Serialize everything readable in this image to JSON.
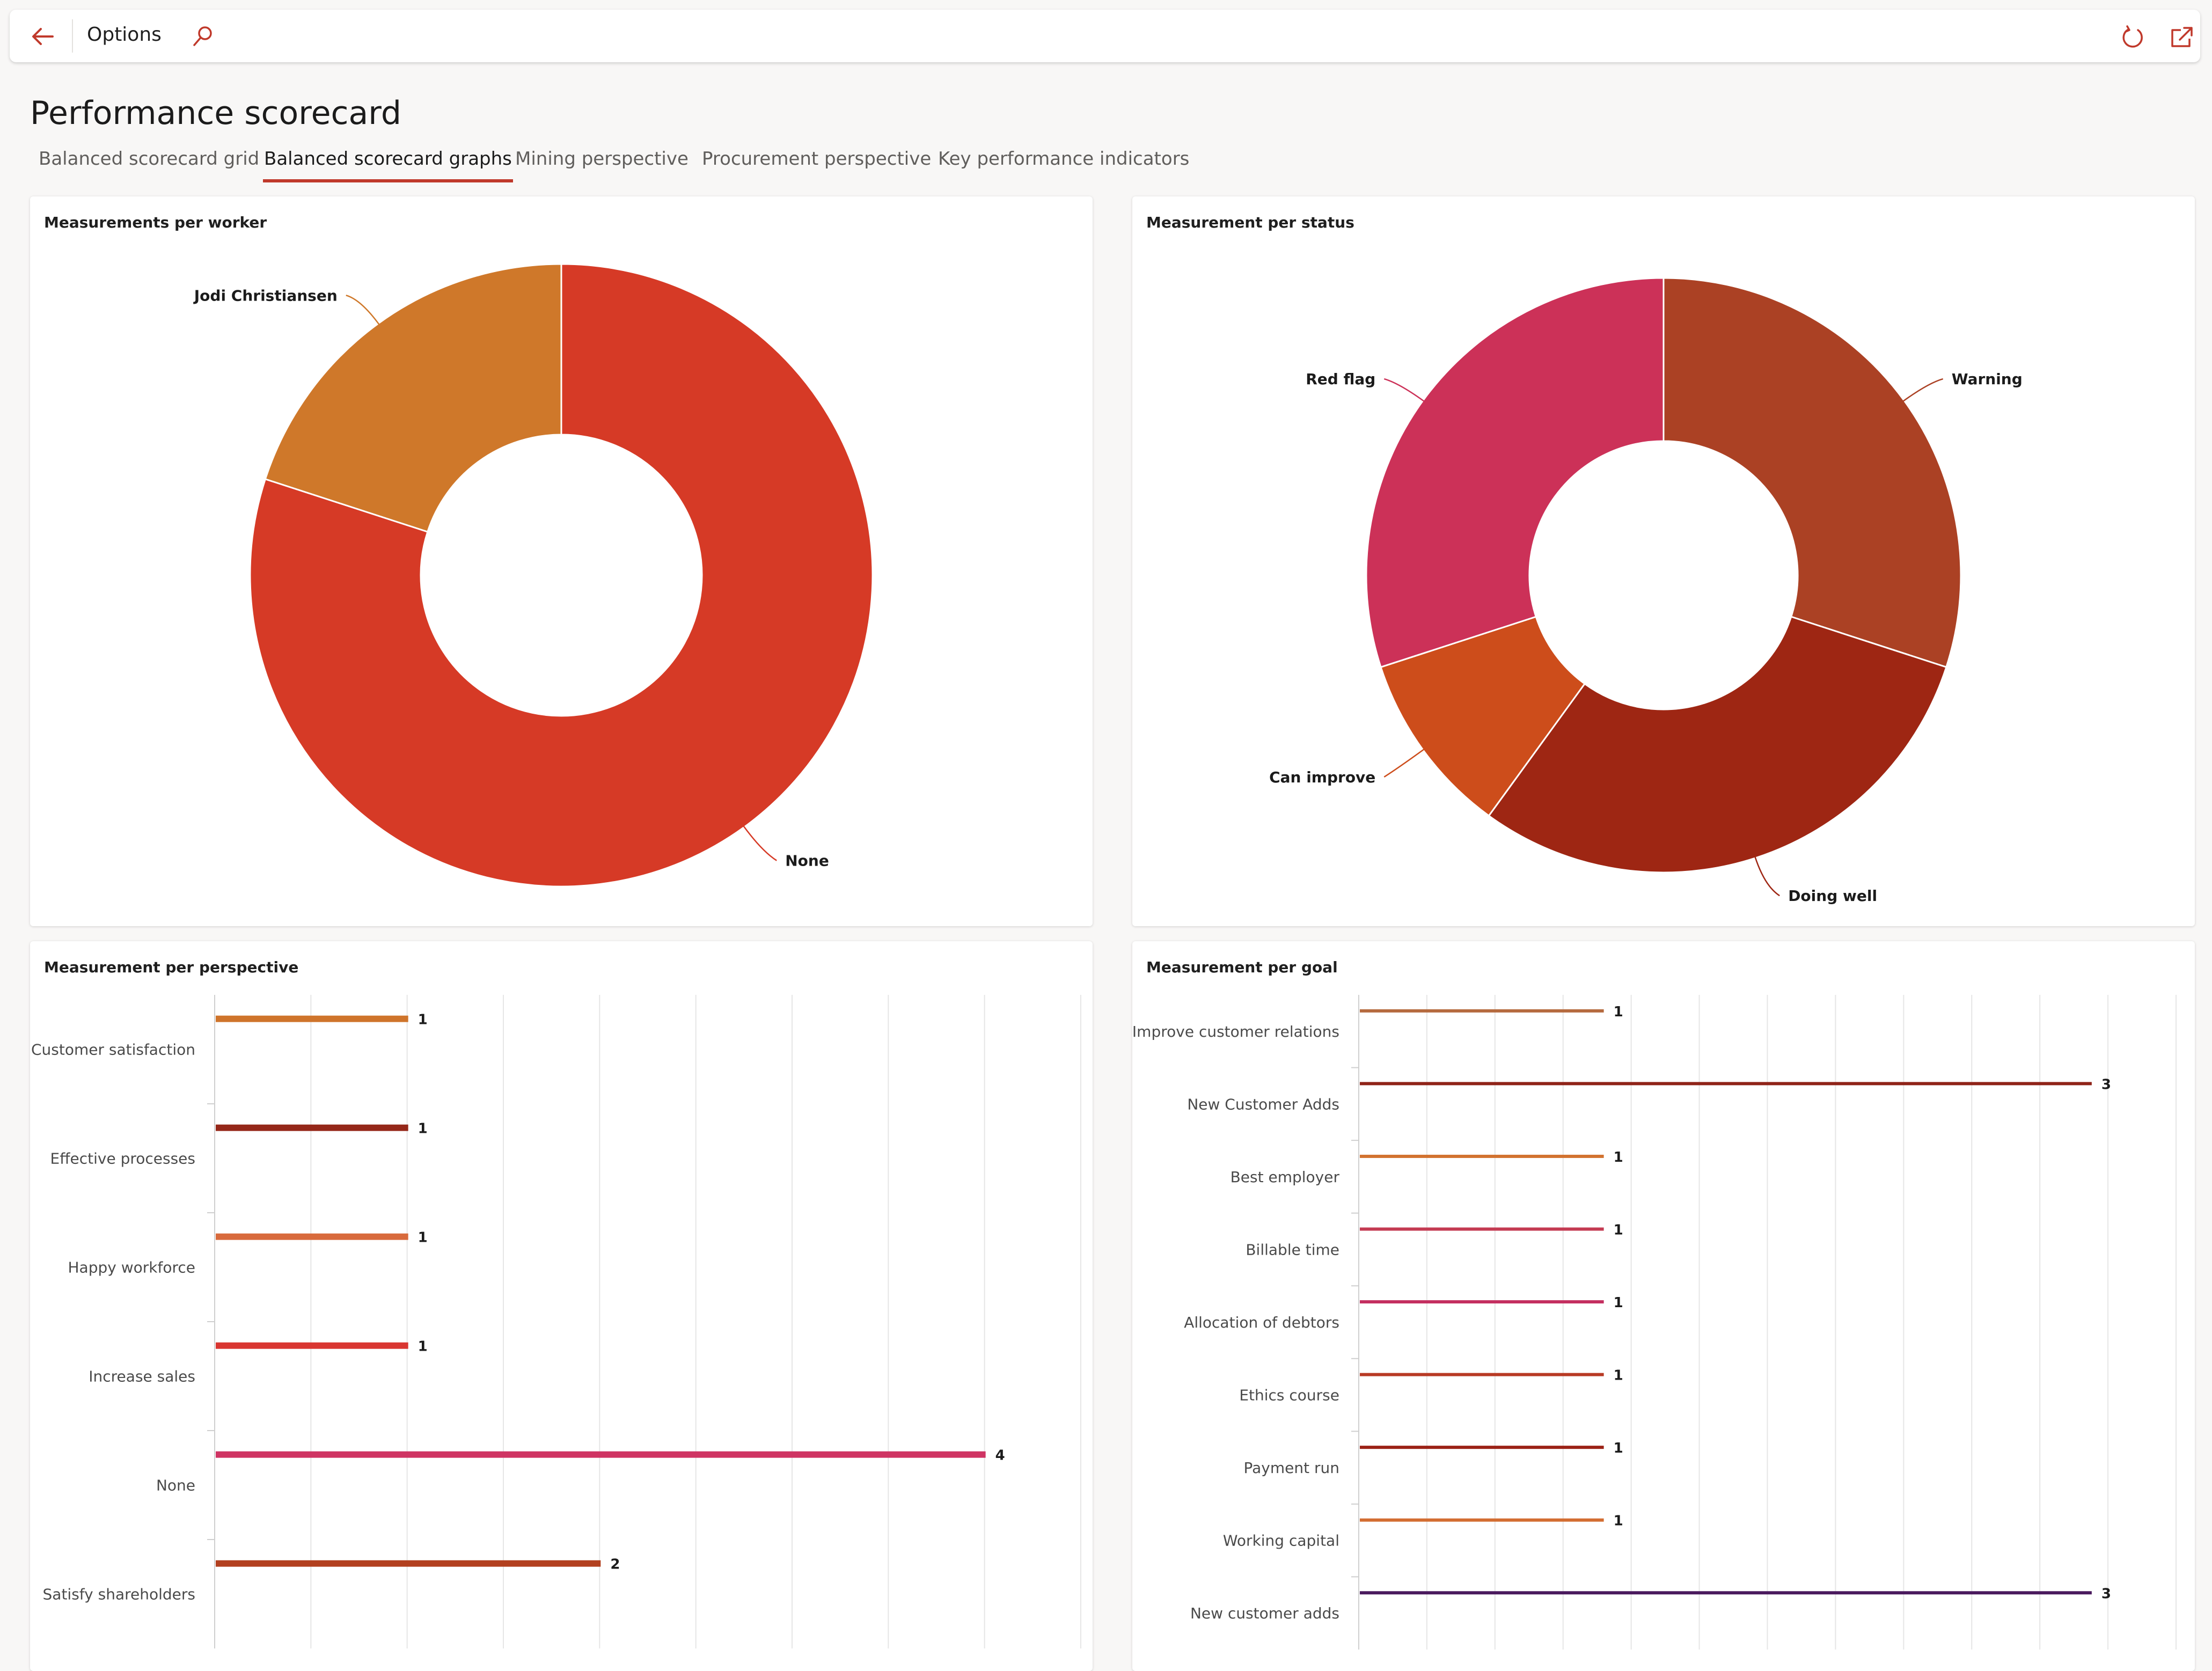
{
  "topbar": {
    "title": "Options",
    "back_icon": "back-arrow-icon",
    "search_icon": "search-icon",
    "refresh_icon": "refresh-icon",
    "popout_icon": "open-in-new-window-icon",
    "accent_color": "#c0392b"
  },
  "page": {
    "title": "Performance scorecard"
  },
  "tabs": [
    {
      "label": "Balanced scorecard grid",
      "active": false
    },
    {
      "label": "Balanced scorecard graphs",
      "active": true
    },
    {
      "label": "Mining perspective",
      "active": false
    },
    {
      "label": "Procurement perspective",
      "active": false
    },
    {
      "label": "Key performance indicators",
      "active": false
    }
  ],
  "cards": {
    "worker": {
      "title": "Measurements per worker"
    },
    "status": {
      "title": "Measurement per status"
    },
    "perspective": {
      "title": "Measurement per perspective"
    },
    "goal": {
      "title": "Measurement per goal"
    }
  },
  "chart_data": [
    {
      "id": "worker",
      "type": "pie",
      "donut": true,
      "slices": [
        {
          "label": "None",
          "value": 8,
          "color": "#d63a26"
        },
        {
          "label": "Jodi Christiansen",
          "value": 2,
          "color": "#cf782a"
        }
      ]
    },
    {
      "id": "status",
      "type": "pie",
      "donut": true,
      "slices": [
        {
          "label": "Warning",
          "value": 3,
          "color": "#ab4124"
        },
        {
          "label": "Doing well",
          "value": 3,
          "color": "#9e2613"
        },
        {
          "label": "Can improve",
          "value": 1,
          "color": "#cd4d1b"
        },
        {
          "label": "Red flag",
          "value": 3,
          "color": "#cc3158"
        }
      ]
    },
    {
      "id": "perspective",
      "type": "bar",
      "orientation": "horizontal",
      "categories": [
        "Customer satisfaction",
        "Effective processes",
        "Happy workforce",
        "Increase sales",
        "None",
        "Satisfy shareholders"
      ],
      "values": [
        1,
        1,
        1,
        1,
        4,
        2
      ],
      "colors": [
        "#cf742b",
        "#952719",
        "#d86a3c",
        "#d93631",
        "#cf3463",
        "#b2401f"
      ],
      "xlim": [
        0,
        4.5
      ]
    },
    {
      "id": "goal",
      "type": "bar",
      "orientation": "horizontal",
      "categories": [
        "Improve customer relations",
        "New Customer Adds",
        "Best employer",
        "Billable time",
        "Allocation of debtors",
        "Ethics course",
        "Payment run",
        "Working capital",
        "New customer adds"
      ],
      "values": [
        1,
        3,
        1,
        1,
        1,
        1,
        1,
        1,
        3
      ],
      "colors": [
        "#b56a3e",
        "#8f2318",
        "#d2722f",
        "#c43b52",
        "#c42f60",
        "#b83a24",
        "#9b2216",
        "#d36d31",
        "#4a1a5e"
      ],
      "xlim": [
        0,
        3.35
      ]
    }
  ]
}
